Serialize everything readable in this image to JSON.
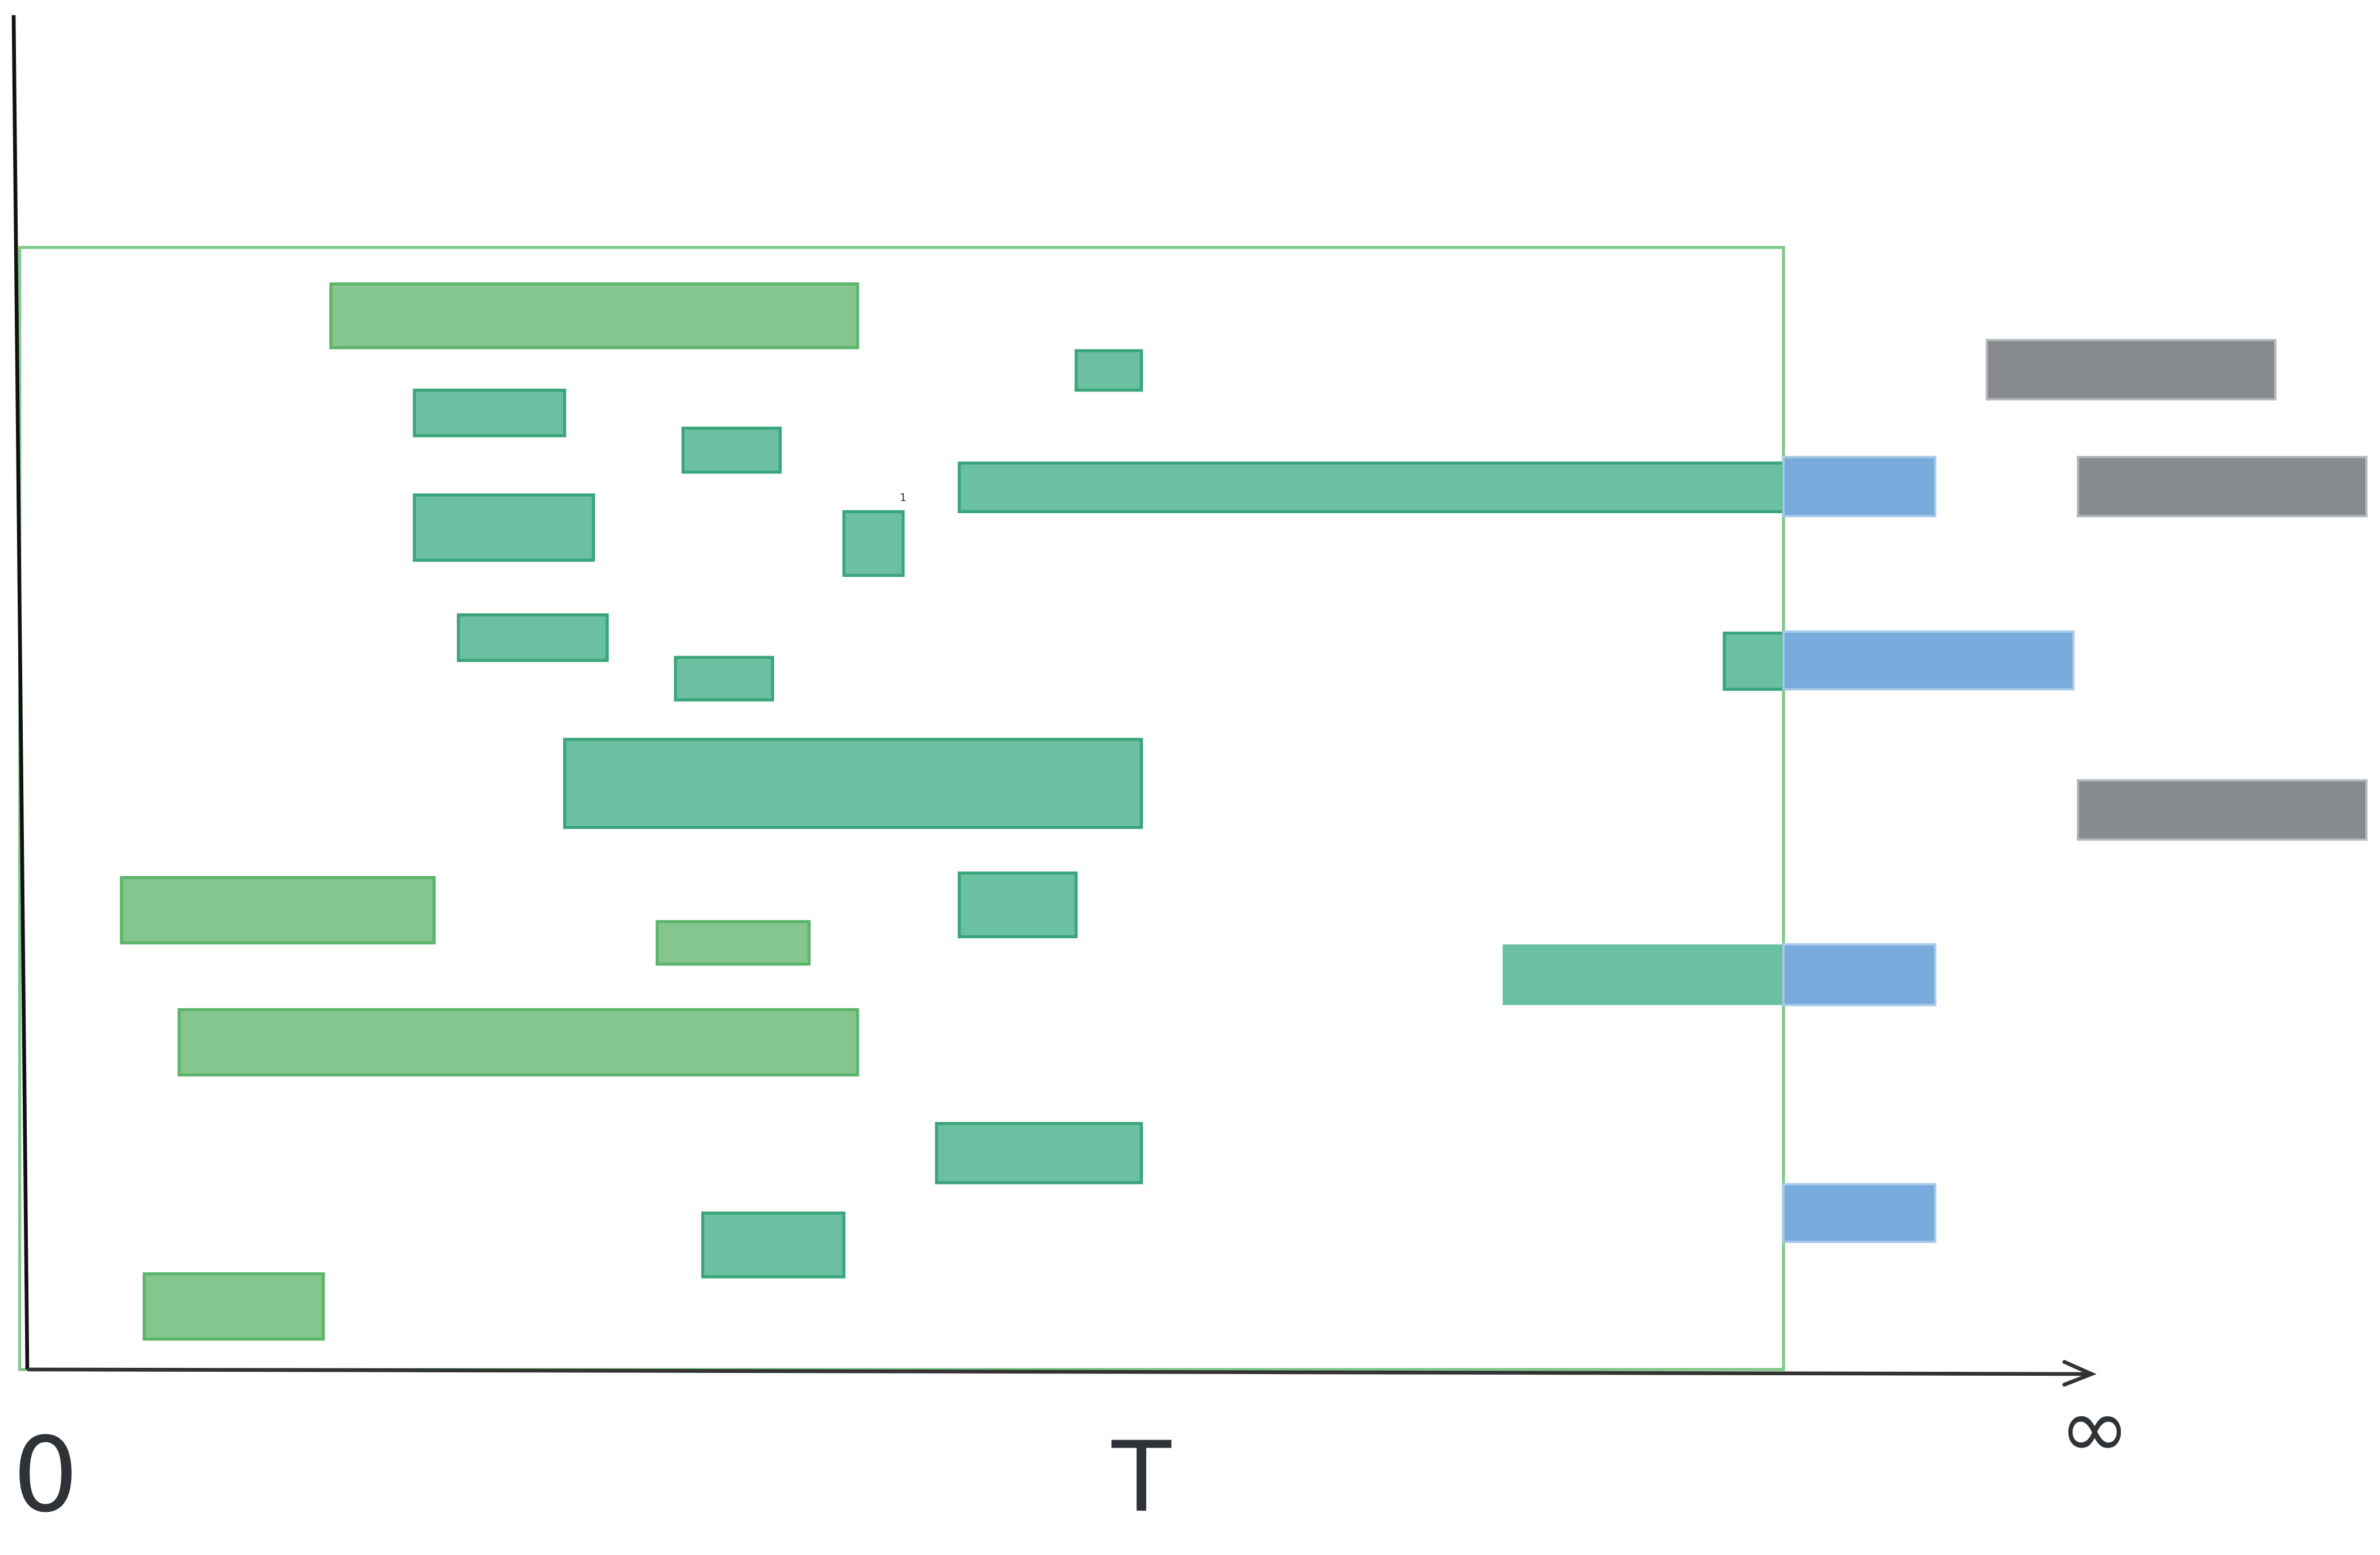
{
  "labels": {
    "origin": "0",
    "t": "T",
    "infinity": "∞",
    "marker": "1"
  }
}
